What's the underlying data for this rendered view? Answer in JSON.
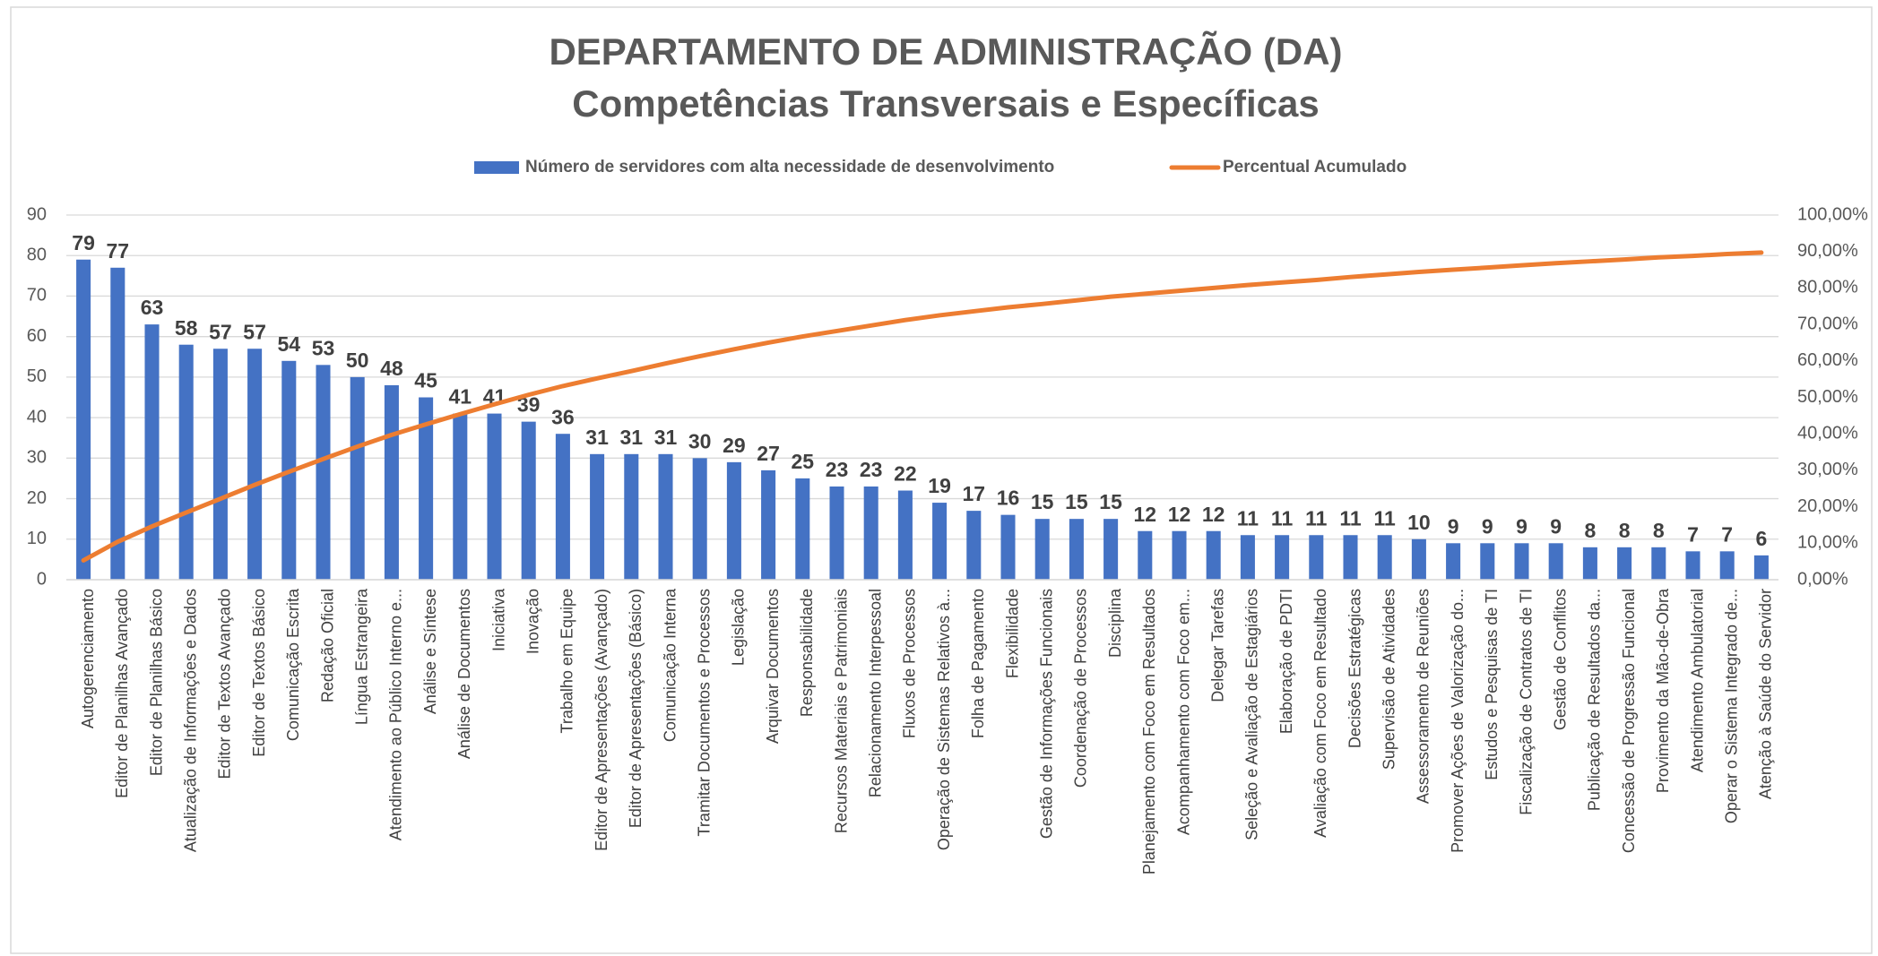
{
  "chart_data": {
    "type": "pareto",
    "title": "DEPARTAMENTO DE ADMINISTRAÇÃO (DA)",
    "subtitle": "Competências Transversais e Específicas",
    "categories": [
      "Autogerenciamento",
      "Editor de Planilhas Avançado",
      "Editor de Planilhas Básico",
      "Atualização de Informações e Dados",
      "Editor de Textos Avançado",
      "Editor de Textos Básico",
      "Comunicação Escrita",
      "Redação Oficial",
      "Língua Estrangeira",
      "Atendimento ao Público Interno e...",
      "Análise e Síntese",
      "Análise de Documentos",
      "Iniciativa",
      "Inovação",
      "Trabalho em Equipe",
      "Editor de Apresentações (Avançado)",
      "Editor de Apresentações (Básico)",
      "Comunicação Interna",
      "Tramitar Documentos e Processos",
      "Legislação",
      "Arquivar Documentos",
      "Responsabilidade",
      "Recursos Materiais e Patrimoniais",
      "Relacionamento Interpessoal",
      "Fluxos de Processos",
      "Operação de Sistemas Relativos à...",
      "Folha de Pagamento",
      "Flexibilidade",
      "Gestão de Informações Funcionais",
      "Coordenação de Processos",
      "Disciplina",
      "Planejamento com Foco em Resultados",
      "Acompanhamento com Foco em...",
      "Delegar Tarefas",
      "Seleção e Avaliação de Estagiários",
      "Elaboração de PDTI",
      "Avaliação com Foco em Resultado",
      "Decisões Estratégicas",
      "Supervisão de Atividades",
      "Assessoramento de Reuniões",
      "Promover Ações de Valorização do...",
      "Estudos e Pesquisas de TI",
      "Fiscalização de Contratos de TI",
      "Gestão de Conflitos",
      "Publicação de Resultados da...",
      "Concessão de Progressão Funcional",
      "Provimento da Mão-de-Obra",
      "Atendimento Ambulatorial",
      "Operar o Sistema Integrado de...",
      "Atenção à Saúde do Servidor"
    ],
    "series": [
      {
        "name": "Número de servidores com alta necessidade de desenvolvimento",
        "type": "bar",
        "color": "#4472c4",
        "values": [
          79,
          77,
          63,
          58,
          57,
          57,
          54,
          53,
          50,
          48,
          45,
          41,
          41,
          39,
          36,
          31,
          31,
          31,
          30,
          29,
          27,
          25,
          23,
          23,
          22,
          19,
          17,
          16,
          15,
          15,
          15,
          12,
          12,
          12,
          11,
          11,
          11,
          11,
          11,
          10,
          9,
          9,
          9,
          9,
          8,
          8,
          8,
          7,
          7,
          6
        ]
      },
      {
        "name": "Percentual Acumulado",
        "type": "line",
        "color": "#ed7d31",
        "axis": "y2",
        "values": [
          5.3,
          10.4,
          14.6,
          18.4,
          22.2,
          26.0,
          29.6,
          33.1,
          36.5,
          39.7,
          42.6,
          45.4,
          48.1,
          50.7,
          53.1,
          55.2,
          57.2,
          59.3,
          61.3,
          63.2,
          65.0,
          66.7,
          68.2,
          69.7,
          71.2,
          72.5,
          73.6,
          74.7,
          75.6,
          76.6,
          77.6,
          78.4,
          79.2,
          80.0,
          80.8,
          81.5,
          82.2,
          83.0,
          83.7,
          84.4,
          85.0,
          85.6,
          86.2,
          86.8,
          87.3,
          87.8,
          88.4,
          88.8,
          89.3,
          89.7
        ]
      }
    ],
    "ylim": [
      0,
      90
    ],
    "yticks": [
      0,
      10,
      20,
      30,
      40,
      50,
      60,
      70,
      80,
      90
    ],
    "y2lim": [
      0,
      100
    ],
    "y2ticks": [
      {
        "value": 0,
        "label": "0,00%"
      },
      {
        "value": 10,
        "label": "10,00%"
      },
      {
        "value": 20,
        "label": "20,00%"
      },
      {
        "value": 30,
        "label": "30,00%"
      },
      {
        "value": 40,
        "label": "40,00%"
      },
      {
        "value": 50,
        "label": "50,00%"
      },
      {
        "value": 60,
        "label": "60,00%"
      },
      {
        "value": 70,
        "label": "70,00%"
      },
      {
        "value": 80,
        "label": "80,00%"
      },
      {
        "value": 90,
        "label": "90,00%"
      },
      {
        "value": 100,
        "label": "100,00%"
      }
    ],
    "grid": true,
    "legend": "top",
    "data_labels": true
  }
}
